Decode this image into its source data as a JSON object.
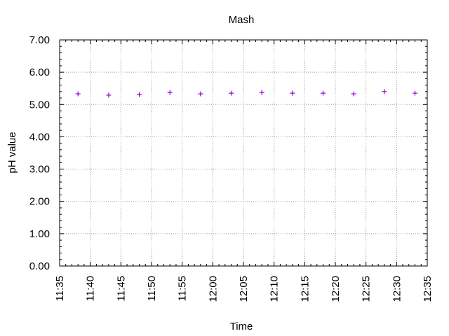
{
  "chart_data": {
    "type": "scatter",
    "title": "Mash",
    "xlabel": "Time",
    "ylabel": "pH value",
    "x_ticks": [
      "11:35",
      "11:40",
      "11:45",
      "11:50",
      "11:55",
      "12:00",
      "12:05",
      "12:10",
      "12:15",
      "12:20",
      "12:25",
      "12:30",
      "12:35"
    ],
    "y_ticks": [
      "0.00",
      "1.00",
      "2.00",
      "3.00",
      "4.00",
      "5.00",
      "6.00",
      "7.00"
    ],
    "xlim": [
      "11:35",
      "12:35"
    ],
    "ylim": [
      0,
      7
    ],
    "grid": true,
    "series": [
      {
        "color": "#9400d3",
        "marker": "plus",
        "points": [
          {
            "x": "11:38",
            "y": 5.33
          },
          {
            "x": "11:43",
            "y": 5.29
          },
          {
            "x": "11:48",
            "y": 5.31
          },
          {
            "x": "11:53",
            "y": 5.37
          },
          {
            "x": "11:58",
            "y": 5.33
          },
          {
            "x": "12:03",
            "y": 5.35
          },
          {
            "x": "12:08",
            "y": 5.37
          },
          {
            "x": "12:13",
            "y": 5.35
          },
          {
            "x": "12:18",
            "y": 5.35
          },
          {
            "x": "12:23",
            "y": 5.33
          },
          {
            "x": "12:28",
            "y": 5.4
          },
          {
            "x": "12:33",
            "y": 5.35
          }
        ]
      }
    ]
  }
}
